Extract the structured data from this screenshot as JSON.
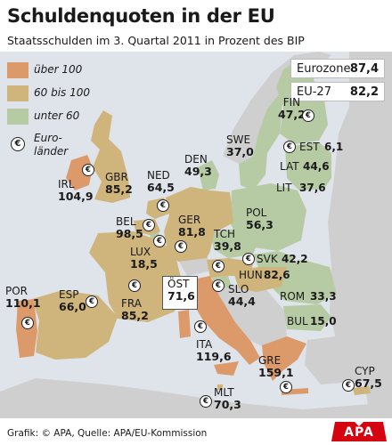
{
  "title": "Schuldenquoten in der EU",
  "subtitle": "Staatsschulden im 3. Quartal 2011 in Prozent des BIP",
  "colors": {
    "ueber_100": "#dc9a6b",
    "60_bis_100": "#cfb47c",
    "unter_60": "#b6cba3",
    "non_eu_land": "#cfcfcf",
    "sea": "#dfe3ea"
  },
  "legend": [
    {
      "label": "über 100",
      "color": "#dc9a6b"
    },
    {
      "label": "60 bis 100",
      "color": "#cfb47c"
    },
    {
      "label": "unter 60",
      "color": "#b6cba3"
    }
  ],
  "legend_euro": {
    "symbol": "€",
    "line1": "Euro-",
    "line2": "länder"
  },
  "aggregates": [
    {
      "name": "Eurozone",
      "value": "87,4"
    },
    {
      "name": "EU-27",
      "value": "82,2"
    }
  ],
  "countries": [
    {
      "code": "FIN",
      "value": "47,2",
      "class": "unter_60",
      "euro": true
    },
    {
      "code": "SWE",
      "value": "37,0",
      "class": "unter_60",
      "euro": false
    },
    {
      "code": "EST",
      "value": "6,1",
      "class": "unter_60",
      "euro": true
    },
    {
      "code": "LAT",
      "value": "44,6",
      "class": "unter_60",
      "euro": false
    },
    {
      "code": "LIT",
      "value": "37,6",
      "class": "unter_60",
      "euro": false
    },
    {
      "code": "DEN",
      "value": "49,3",
      "class": "unter_60",
      "euro": false
    },
    {
      "code": "IRL",
      "value": "104,9",
      "class": "ueber_100",
      "euro": true
    },
    {
      "code": "GBR",
      "value": "85,2",
      "class": "60_bis_100",
      "euro": false
    },
    {
      "code": "NED",
      "value": "64,5",
      "class": "60_bis_100",
      "euro": true
    },
    {
      "code": "BEL",
      "value": "98,5",
      "class": "60_bis_100",
      "euro": true
    },
    {
      "code": "LUX",
      "value": "18,5",
      "class": "unter_60",
      "euro": true
    },
    {
      "code": "GER",
      "value": "81,8",
      "class": "60_bis_100",
      "euro": true
    },
    {
      "code": "POL",
      "value": "56,3",
      "class": "unter_60",
      "euro": false
    },
    {
      "code": "TCH",
      "value": "39,8",
      "class": "unter_60",
      "euro": false
    },
    {
      "code": "SVK",
      "value": "42,2",
      "class": "unter_60",
      "euro": true
    },
    {
      "code": "ÖST",
      "value": "71,6",
      "class": "60_bis_100",
      "euro": true
    },
    {
      "code": "HUN",
      "value": "82,6",
      "class": "60_bis_100",
      "euro": false
    },
    {
      "code": "SLO",
      "value": "44,4",
      "class": "unter_60",
      "euro": true
    },
    {
      "code": "ROM",
      "value": "33,3",
      "class": "unter_60",
      "euro": false
    },
    {
      "code": "BUL",
      "value": "15,0",
      "class": "unter_60",
      "euro": false
    },
    {
      "code": "FRA",
      "value": "85,2",
      "class": "60_bis_100",
      "euro": true
    },
    {
      "code": "POR",
      "value": "110,1",
      "class": "ueber_100",
      "euro": true
    },
    {
      "code": "ESP",
      "value": "66,0",
      "class": "60_bis_100",
      "euro": true
    },
    {
      "code": "ITA",
      "value": "119,6",
      "class": "ueber_100",
      "euro": true
    },
    {
      "code": "GRE",
      "value": "159,1",
      "class": "ueber_100",
      "euro": true
    },
    {
      "code": "MLT",
      "value": "70,3",
      "class": "60_bis_100",
      "euro": true
    },
    {
      "code": "CYP",
      "value": "67,5",
      "class": "60_bis_100",
      "euro": true
    }
  ],
  "footer": "Grafik: © APA, Quelle: APA/EU-Kommission",
  "logo": "APA"
}
